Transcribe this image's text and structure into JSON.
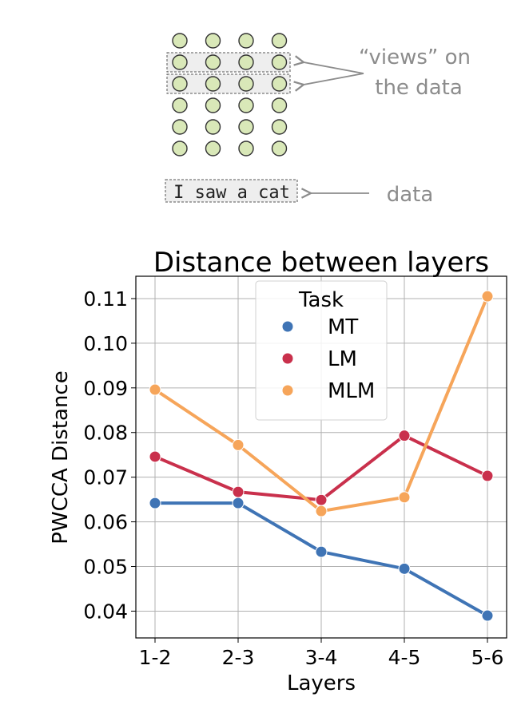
{
  "diagram": {
    "views_label_line1": "“views” on",
    "views_label_line2": "the data",
    "data_text": "I saw a cat",
    "data_label": "data",
    "grid_rows": 6,
    "grid_cols": 4,
    "highlighted_rows": [
      2,
      3
    ],
    "node_fill": "#d9e8b8",
    "label_color": "#8c8c8c"
  },
  "chart_data": {
    "type": "line",
    "title": "Distance between layers",
    "xlabel": "Layers",
    "ylabel": "PWCCA Distance",
    "categories": [
      "1-2",
      "2-3",
      "3-4",
      "4-5",
      "5-6"
    ],
    "ylim": [
      0.034,
      0.115
    ],
    "yticks": [
      0.04,
      0.05,
      0.06,
      0.07,
      0.08,
      0.09,
      0.1,
      0.11
    ],
    "ytick_labels": [
      "0.04",
      "0.05",
      "0.06",
      "0.07",
      "0.08",
      "0.09",
      "0.10",
      "0.11"
    ],
    "grid": true,
    "legend": {
      "title": "Task",
      "placement": "top-center"
    },
    "series": [
      {
        "name": "MT",
        "color": "#3f74b5",
        "values": [
          0.0642,
          0.0642,
          0.0533,
          0.0495,
          0.039
        ]
      },
      {
        "name": "LM",
        "color": "#c9304c",
        "values": [
          0.0746,
          0.0667,
          0.0649,
          0.0793,
          0.0703
        ]
      },
      {
        "name": "MLM",
        "color": "#f6a55a",
        "values": [
          0.0896,
          0.0772,
          0.0624,
          0.0655,
          0.1105
        ]
      }
    ]
  }
}
